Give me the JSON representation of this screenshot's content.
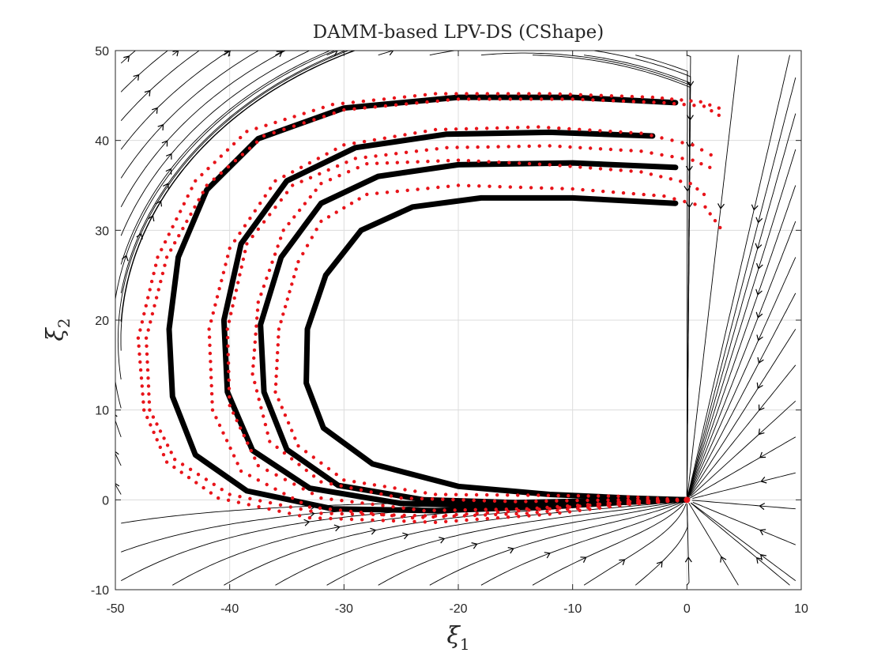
{
  "chart_data": {
    "type": "scatter",
    "title": "DAMM-based LPV-DS (CShape)",
    "xlabel": {
      "symbol": "ξ",
      "sub": "1"
    },
    "ylabel": {
      "symbol": "ξ",
      "sub": "2"
    },
    "xlim": [
      -50,
      10
    ],
    "ylim": [
      -10,
      50
    ],
    "xticks": [
      "-50",
      "-40",
      "-30",
      "-20",
      "-10",
      "0",
      "10"
    ],
    "yticks": [
      "-10",
      "0",
      "10",
      "20",
      "30",
      "40",
      "50"
    ],
    "xtick_values": [
      -50,
      -40,
      -30,
      -20,
      -10,
      0,
      10
    ],
    "ytick_values": [
      -10,
      0,
      10,
      20,
      30,
      40,
      50
    ],
    "grid": true,
    "attractor": [
      0,
      0
    ],
    "series": [
      {
        "kind": "demonstrations",
        "color": "#e8141a",
        "trajectories": [
          [
            [
              2.8,
              42.8
            ],
            [
              1.5,
              43.8
            ],
            [
              -2,
              44.2
            ],
            [
              -10,
              44.6
            ],
            [
              -20,
              44.6
            ],
            [
              -30,
              43.4
            ],
            [
              -37,
              40.5
            ],
            [
              -42,
              35
            ],
            [
              -45.5,
              27
            ],
            [
              -47.3,
              18
            ],
            [
              -47,
              10
            ],
            [
              -44.8,
              4.5
            ],
            [
              -40,
              0.6
            ],
            [
              -32,
              -1.5
            ],
            [
              -22,
              -1.8
            ],
            [
              -12,
              -1
            ],
            [
              -5,
              -0.2
            ],
            [
              0,
              0
            ]
          ],
          [
            [
              2.8,
              43.6
            ],
            [
              1.2,
              44.3
            ],
            [
              -3,
              44.8
            ],
            [
              -12,
              45.2
            ],
            [
              -22,
              45.2
            ],
            [
              -31,
              44
            ],
            [
              -38.5,
              41
            ],
            [
              -43,
              35.5
            ],
            [
              -46.3,
              27
            ],
            [
              -48,
              18
            ],
            [
              -47.5,
              10
            ],
            [
              -45.5,
              4.2
            ],
            [
              -41,
              0.2
            ],
            [
              -33,
              -2
            ],
            [
              -22,
              -2.5
            ],
            [
              -12,
              -1.6
            ],
            [
              -5,
              -0.5
            ],
            [
              0,
              0
            ]
          ],
          [
            [
              2.1,
              38.4
            ],
            [
              0.5,
              39.5
            ],
            [
              -4,
              40.8
            ],
            [
              -13,
              41.5
            ],
            [
              -22,
              41.2
            ],
            [
              -30,
              39.5
            ],
            [
              -36,
              35.5
            ],
            [
              -40,
              28
            ],
            [
              -41.8,
              19
            ],
            [
              -41.5,
              10
            ],
            [
              -39,
              3.2
            ],
            [
              -33,
              -0.8
            ],
            [
              -24,
              -2
            ],
            [
              -14,
              -1.5
            ],
            [
              -6,
              -0.5
            ],
            [
              0,
              0
            ]
          ],
          [
            [
              2,
              37
            ],
            [
              0.5,
              37.8
            ],
            [
              -4,
              38.8
            ],
            [
              -12,
              39.4
            ],
            [
              -21,
              39.2
            ],
            [
              -29,
              38
            ],
            [
              -34.5,
              35
            ],
            [
              -38.5,
              28.5
            ],
            [
              -40.2,
              19
            ],
            [
              -40,
              10.5
            ],
            [
              -37.5,
              3.8
            ],
            [
              -32,
              0.2
            ],
            [
              -23,
              -1.2
            ],
            [
              -14,
              -1
            ],
            [
              -6,
              -0.3
            ],
            [
              0,
              0
            ]
          ],
          [
            [
              1.5,
              34
            ],
            [
              0.3,
              35.2
            ],
            [
              -4,
              36.5
            ],
            [
              -12,
              37.3
            ],
            [
              -20,
              37.8
            ],
            [
              -28,
              37.4
            ],
            [
              -32,
              35.2
            ],
            [
              -35.3,
              30
            ],
            [
              -37.5,
              22
            ],
            [
              -38,
              14
            ],
            [
              -36.5,
              6.5
            ],
            [
              -32,
              2
            ],
            [
              -25,
              0.2
            ],
            [
              -15,
              -0.2
            ],
            [
              -6,
              0
            ],
            [
              0,
              0
            ]
          ],
          [
            [
              2.9,
              30.3
            ],
            [
              1.6,
              32.6
            ],
            [
              -2,
              33.8
            ],
            [
              -10,
              34.6
            ],
            [
              -20,
              35
            ],
            [
              -28,
              34
            ],
            [
              -32,
              31
            ],
            [
              -34,
              26.5
            ],
            [
              -35.7,
              19
            ],
            [
              -36,
              12
            ],
            [
              -34,
              6
            ],
            [
              -30,
              2.2
            ],
            [
              -22,
              0.6
            ],
            [
              -13,
              0.5
            ],
            [
              -6,
              0.4
            ],
            [
              0,
              0
            ]
          ]
        ]
      },
      {
        "kind": "reproductions",
        "color": "#000000",
        "trajectories": [
          [
            [
              -1,
              44.2
            ],
            [
              -10,
              44.8
            ],
            [
              -20,
              44.8
            ],
            [
              -30,
              43.6
            ],
            [
              -37.5,
              40.2
            ],
            [
              -42,
              34.5
            ],
            [
              -44.5,
              27
            ],
            [
              -45.3,
              19
            ],
            [
              -45,
              11.5
            ],
            [
              -43,
              5
            ],
            [
              -38.5,
              1
            ],
            [
              -31,
              -1
            ],
            [
              -22,
              -1.2
            ],
            [
              -13,
              -0.8
            ],
            [
              -6,
              -0.3
            ],
            [
              0,
              0
            ]
          ],
          [
            [
              -3,
              40.5
            ],
            [
              -12,
              40.9
            ],
            [
              -21,
              40.7
            ],
            [
              -29,
              39.2
            ],
            [
              -35,
              35.5
            ],
            [
              -39,
              28.5
            ],
            [
              -40.5,
              20
            ],
            [
              -40.2,
              12
            ],
            [
              -38,
              5.5
            ],
            [
              -33,
              1.3
            ],
            [
              -25,
              -0.4
            ],
            [
              -16,
              -0.7
            ],
            [
              -8,
              -0.3
            ],
            [
              0,
              0
            ]
          ],
          [
            [
              -1,
              37
            ],
            [
              -10,
              37.5
            ],
            [
              -20,
              37.3
            ],
            [
              -27,
              36
            ],
            [
              -32,
              33
            ],
            [
              -35.5,
              27
            ],
            [
              -37.3,
              19.5
            ],
            [
              -37,
              12
            ],
            [
              -35,
              5.6
            ],
            [
              -30.5,
              1.6
            ],
            [
              -23,
              0
            ],
            [
              -15,
              -0.3
            ],
            [
              -7,
              -0.1
            ],
            [
              0,
              0
            ]
          ],
          [
            [
              -1,
              33
            ],
            [
              -10,
              33.6
            ],
            [
              -18,
              33.6
            ],
            [
              -24,
              32.6
            ],
            [
              -28.5,
              30
            ],
            [
              -31.6,
              25
            ],
            [
              -33.2,
              19
            ],
            [
              -33.3,
              13
            ],
            [
              -31.8,
              8
            ],
            [
              -27.5,
              4
            ],
            [
              -20,
              1.5
            ],
            [
              -12,
              0.6
            ],
            [
              -5,
              0.2
            ],
            [
              0,
              0
            ]
          ]
        ]
      }
    ],
    "streamline_color": "#000000"
  }
}
